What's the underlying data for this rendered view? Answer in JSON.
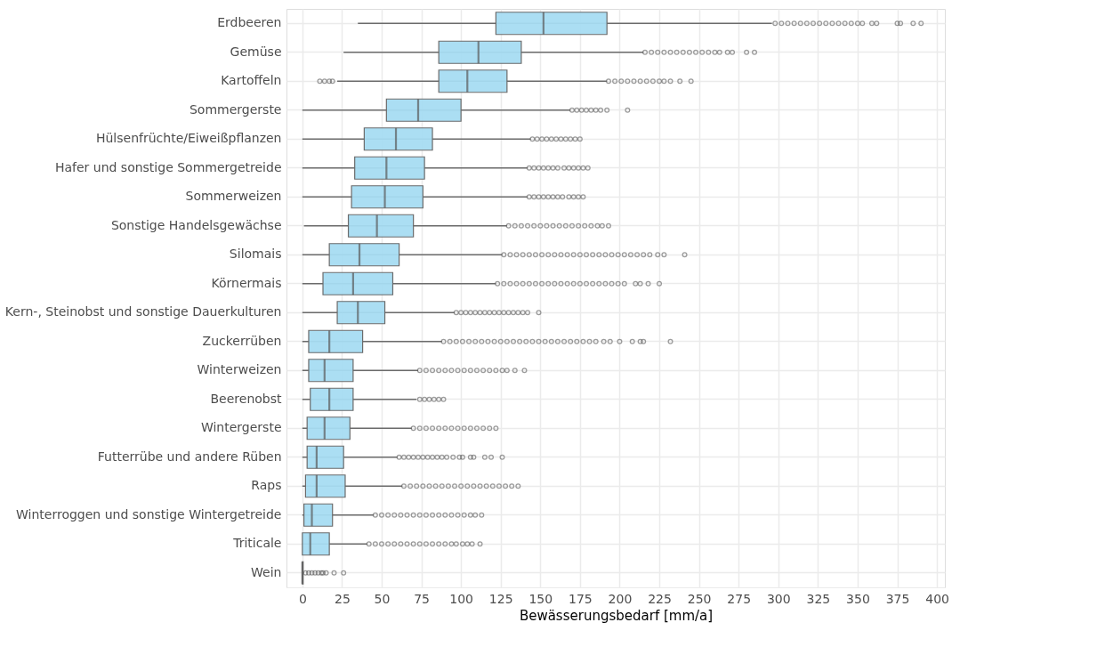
{
  "chart_data": {
    "type": "box",
    "orientation": "horizontal",
    "xlabel": "Bewässerungsbedarf [mm/a]",
    "categories": [
      "Erdbeeren",
      "Gemüse",
      "Kartoffeln",
      "Sommergerste",
      "Hülsenfrüchte/Eiweißpflanzen",
      "Hafer und sonstige Sommergetreide",
      "Sommerweizen",
      "Sonstige Handelsgewächse",
      "Silomais",
      "Körnermais",
      "Kern-, Steinobst und sonstige Dauerkulturen",
      "Zuckerrüben",
      "Winterweizen",
      "Beerenobst",
      "Wintergerste",
      "Futterrübe und andere Rüben",
      "Raps",
      "Winterroggen und sonstige Wintergetreide",
      "Triticale",
      "Wein"
    ],
    "boxes": [
      {
        "low": 35,
        "q1": 122,
        "median": 152,
        "q3": 192,
        "high": 296,
        "outliers": [
          298,
          302,
          306,
          310,
          314,
          318,
          322,
          326,
          330,
          334,
          338,
          342,
          346,
          350,
          353,
          359,
          362,
          375,
          377,
          385,
          390
        ]
      },
      {
        "low": 26,
        "q1": 86,
        "median": 111,
        "q3": 138,
        "high": 215,
        "outliers": [
          216,
          220,
          224,
          228,
          232,
          236,
          240,
          244,
          248,
          252,
          256,
          260,
          263,
          268,
          271,
          280,
          285
        ]
      },
      {
        "low": 22,
        "q1": 86,
        "median": 104,
        "q3": 129,
        "high": 192,
        "outliers": [
          11,
          14,
          17,
          19,
          193,
          197,
          201,
          205,
          209,
          213,
          217,
          221,
          225,
          228,
          232,
          238,
          245
        ]
      },
      {
        "low": 0,
        "q1": 53,
        "median": 73,
        "q3": 100,
        "high": 169,
        "outliers": [
          170,
          173,
          176,
          179,
          182,
          185,
          188,
          192,
          205
        ]
      },
      {
        "low": 0,
        "q1": 39,
        "median": 59,
        "q3": 82,
        "high": 144,
        "outliers": [
          145,
          148,
          151,
          154,
          157,
          160,
          163,
          166,
          169,
          172,
          175
        ]
      },
      {
        "low": 0,
        "q1": 33,
        "median": 53,
        "q3": 77,
        "high": 142,
        "outliers": [
          143,
          146,
          149,
          152,
          155,
          158,
          161,
          165,
          168,
          171,
          174,
          177,
          180
        ]
      },
      {
        "low": 0,
        "q1": 31,
        "median": 52,
        "q3": 76,
        "high": 142,
        "outliers": [
          143,
          146,
          149,
          152,
          155,
          158,
          161,
          164,
          168,
          171,
          174,
          177
        ]
      },
      {
        "low": 1,
        "q1": 29,
        "median": 47,
        "q3": 70,
        "high": 129,
        "outliers": [
          130,
          134,
          138,
          142,
          146,
          150,
          154,
          158,
          162,
          166,
          170,
          174,
          178,
          182,
          186,
          189,
          193
        ]
      },
      {
        "low": 0,
        "q1": 17,
        "median": 36,
        "q3": 61,
        "high": 126,
        "outliers": [
          127,
          131,
          135,
          139,
          143,
          147,
          151,
          155,
          159,
          163,
          167,
          171,
          175,
          179,
          183,
          187,
          191,
          195,
          199,
          203,
          207,
          211,
          215,
          219,
          224,
          228,
          241
        ]
      },
      {
        "low": 0,
        "q1": 13,
        "median": 32,
        "q3": 57,
        "high": 122,
        "outliers": [
          123,
          127,
          131,
          135,
          139,
          143,
          147,
          151,
          155,
          159,
          163,
          167,
          171,
          175,
          179,
          183,
          187,
          191,
          195,
          199,
          203,
          210,
          213,
          218,
          225
        ]
      },
      {
        "low": 0,
        "q1": 22,
        "median": 35,
        "q3": 52,
        "high": 96,
        "outliers": [
          97,
          100,
          103,
          106,
          109,
          112,
          115,
          118,
          121,
          124,
          127,
          130,
          133,
          136,
          139,
          142,
          149
        ]
      },
      {
        "low": 0,
        "q1": 4,
        "median": 17,
        "q3": 38,
        "high": 88,
        "outliers": [
          89,
          93,
          97,
          101,
          105,
          109,
          113,
          117,
          121,
          125,
          129,
          133,
          137,
          141,
          145,
          149,
          153,
          157,
          161,
          165,
          169,
          173,
          177,
          181,
          185,
          190,
          194,
          200,
          208,
          213,
          215,
          232
        ]
      },
      {
        "low": 0,
        "q1": 4,
        "median": 14,
        "q3": 32,
        "high": 73,
        "outliers": [
          74,
          78,
          82,
          86,
          90,
          94,
          98,
          102,
          106,
          110,
          114,
          118,
          122,
          126,
          129,
          134,
          140
        ]
      },
      {
        "low": 0,
        "q1": 5,
        "median": 17,
        "q3": 32,
        "high": 72,
        "outliers": [
          74,
          77,
          80,
          83,
          86,
          89
        ]
      },
      {
        "low": 0,
        "q1": 3,
        "median": 14,
        "q3": 30,
        "high": 69,
        "outliers": [
          70,
          74,
          78,
          82,
          86,
          90,
          94,
          98,
          102,
          106,
          110,
          114,
          118,
          122
        ]
      },
      {
        "low": 0,
        "q1": 3,
        "median": 9,
        "q3": 26,
        "high": 60,
        "outliers": [
          61,
          64,
          67,
          70,
          73,
          76,
          79,
          82,
          85,
          88,
          91,
          95,
          99,
          101,
          106,
          108,
          115,
          119,
          126
        ]
      },
      {
        "low": 0,
        "q1": 2,
        "median": 9,
        "q3": 27,
        "high": 63,
        "outliers": [
          64,
          68,
          72,
          76,
          80,
          84,
          88,
          92,
          96,
          100,
          104,
          108,
          112,
          116,
          120,
          124,
          128,
          132,
          136
        ]
      },
      {
        "low": 0,
        "q1": 1,
        "median": 6,
        "q3": 19,
        "high": 45,
        "outliers": [
          46,
          50,
          54,
          58,
          62,
          66,
          70,
          74,
          78,
          82,
          86,
          90,
          94,
          98,
          102,
          106,
          109,
          113
        ]
      },
      {
        "low": 0,
        "q1": 0,
        "median": 5,
        "q3": 17,
        "high": 41,
        "outliers": [
          42,
          46,
          50,
          54,
          58,
          62,
          66,
          70,
          74,
          78,
          82,
          86,
          90,
          94,
          97,
          101,
          104,
          107,
          112
        ]
      },
      {
        "low": 0,
        "q1": 0,
        "median": 0,
        "q3": 0.5,
        "high": 1,
        "outliers": [
          2,
          4,
          6,
          8,
          10,
          12,
          13,
          15,
          20,
          26
        ]
      }
    ],
    "color": "#a6dcf2",
    "xlim": [
      -10,
      405
    ],
    "xticks": [
      0,
      25,
      50,
      75,
      100,
      125,
      150,
      175,
      200,
      225,
      250,
      275,
      300,
      325,
      350,
      375,
      400
    ],
    "grid": true
  }
}
